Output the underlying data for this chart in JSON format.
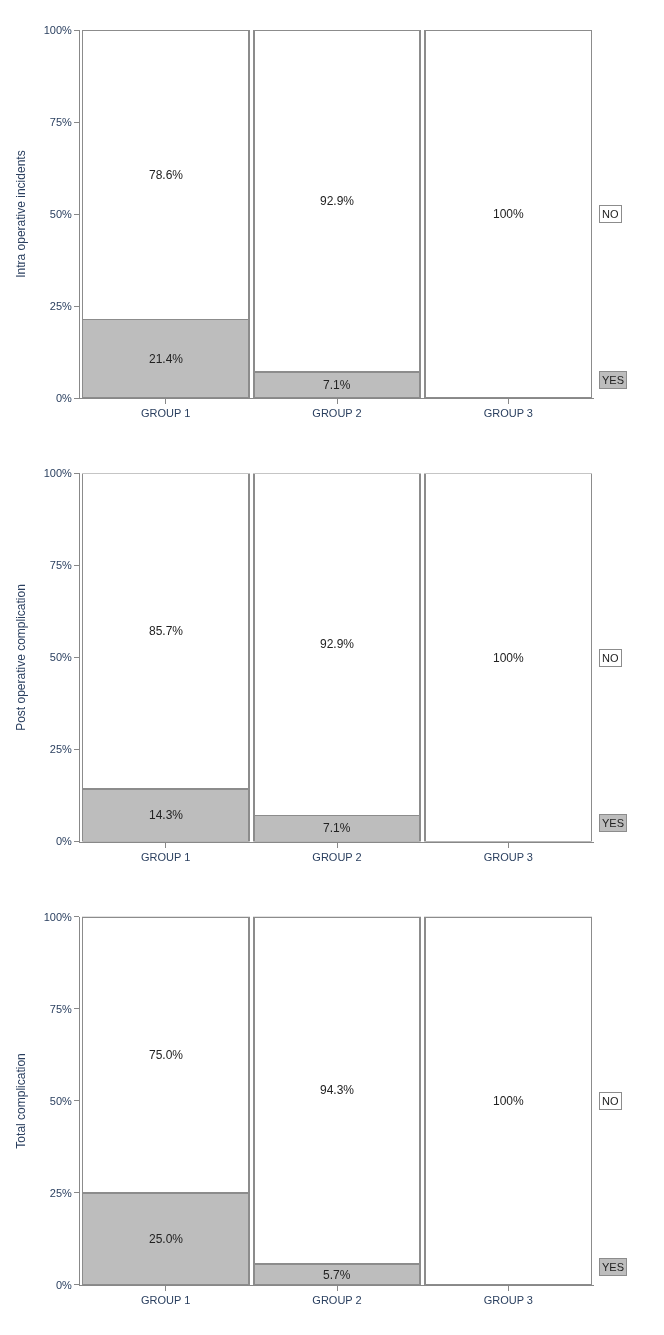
{
  "chart_data": [
    {
      "type": "bar",
      "stacked": true,
      "ylabel": "Intra operative incidents",
      "categories": [
        "GROUP 1",
        "GROUP 2",
        "GROUP 3"
      ],
      "ylim": [
        0,
        100
      ],
      "yticks": [
        {
          "value": 0,
          "label": "0%"
        },
        {
          "value": 25,
          "label": "25%"
        },
        {
          "value": 50,
          "label": "50%"
        },
        {
          "value": 75,
          "label": "75%"
        },
        {
          "value": 100,
          "label": "100%"
        }
      ],
      "legend": false,
      "series": [
        {
          "name": "YES",
          "color": "#bdbdbd",
          "values": [
            21.4,
            7.1,
            0
          ],
          "value_labels": [
            "21.4%",
            "7.1%",
            null
          ]
        },
        {
          "name": "NO",
          "color": "#ffffff",
          "values": [
            78.6,
            92.9,
            100
          ],
          "value_labels": [
            "78.6%",
            "92.9%",
            "100%"
          ]
        }
      ]
    },
    {
      "type": "bar",
      "stacked": true,
      "ylabel": "Post operative complication",
      "categories": [
        "GROUP 1",
        "GROUP 2",
        "GROUP 3"
      ],
      "ylim": [
        0,
        100
      ],
      "yticks": [
        {
          "value": 0,
          "label": "0%"
        },
        {
          "value": 25,
          "label": "25%"
        },
        {
          "value": 50,
          "label": "50%"
        },
        {
          "value": 75,
          "label": "75%"
        },
        {
          "value": 100,
          "label": "100%"
        }
      ],
      "legend": false,
      "series": [
        {
          "name": "YES",
          "color": "#bdbdbd",
          "values": [
            14.3,
            7.1,
            0
          ],
          "value_labels": [
            "14.3%",
            "7.1%",
            null
          ]
        },
        {
          "name": "NO",
          "color": "#ffffff",
          "values": [
            85.7,
            92.9,
            100
          ],
          "value_labels": [
            "85.7%",
            "92.9%",
            "100%"
          ]
        }
      ]
    },
    {
      "type": "bar",
      "stacked": true,
      "ylabel": "Total complication",
      "categories": [
        "GROUP 1",
        "GROUP 2",
        "GROUP 3"
      ],
      "ylim": [
        0,
        100
      ],
      "yticks": [
        {
          "value": 0,
          "label": "0%"
        },
        {
          "value": 25,
          "label": "25%"
        },
        {
          "value": 50,
          "label": "50%"
        },
        {
          "value": 75,
          "label": "75%"
        },
        {
          "value": 100,
          "label": "100%"
        }
      ],
      "legend": false,
      "series": [
        {
          "name": "YES",
          "color": "#bdbdbd",
          "values": [
            25.0,
            5.7,
            0
          ],
          "value_labels": [
            "25.0%",
            "5.7%",
            null
          ]
        },
        {
          "name": "NO",
          "color": "#ffffff",
          "values": [
            75.0,
            94.3,
            100
          ],
          "value_labels": [
            "75.0%",
            "94.3%",
            "100%"
          ]
        }
      ]
    }
  ]
}
